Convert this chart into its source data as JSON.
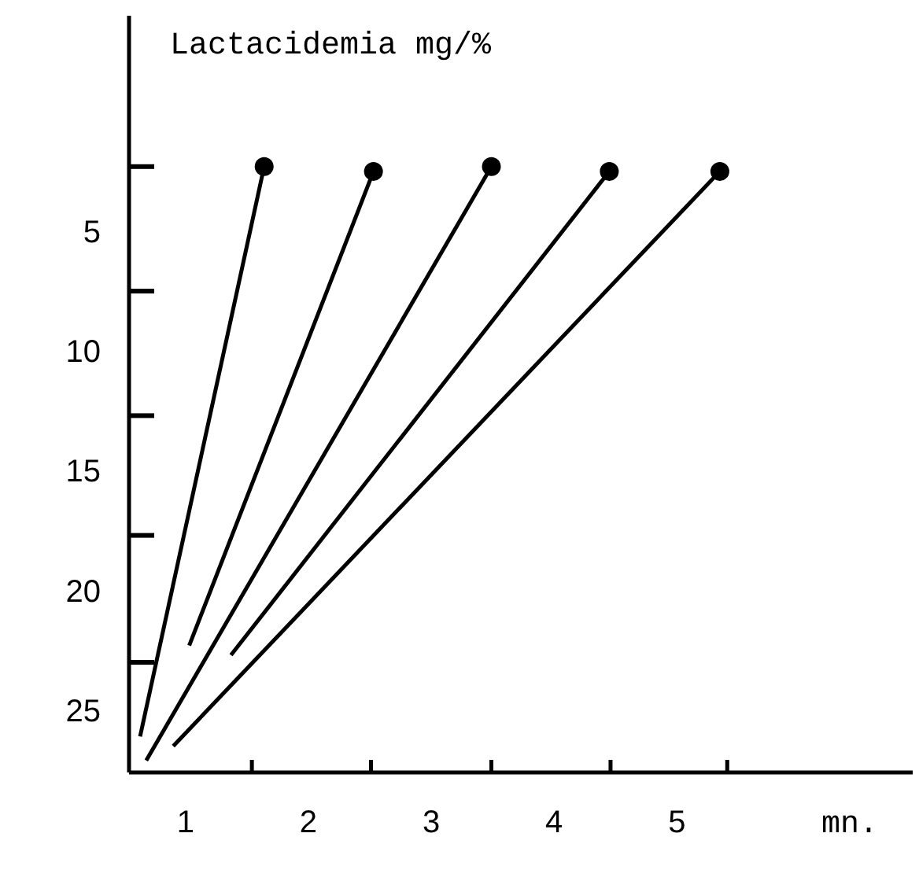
{
  "chart_data": {
    "type": "line",
    "title": "Lactacidemia mg/%",
    "xlabel": "mn.",
    "xlim": [
      0.54,
      6.92
    ],
    "ylim": [
      27.6,
      -4
    ],
    "xticks": [
      1,
      2,
      3,
      4,
      5,
      {
        "value": 1.54,
        "label": null
      },
      {
        "value": 2.51,
        "label": null
      },
      {
        "value": 3.49,
        "label": null
      },
      {
        "value": 4.46,
        "label": null
      },
      {
        "value": 5.41,
        "label": null
      }
    ],
    "yticks": [
      5,
      10,
      15,
      20,
      25,
      {
        "value": 2.3,
        "label": null
      },
      {
        "value": 7.5,
        "label": null
      },
      {
        "value": 12.7,
        "label": null
      },
      {
        "value": 17.7,
        "label": null
      },
      {
        "value": 23,
        "label": null
      }
    ],
    "marker": "none",
    "line_style": "solid",
    "series": [
      {
        "color": "#000000",
        "x": [
          0.63,
          1.64
        ],
        "values": [
          26.1,
          2.3
        ]
      },
      {
        "color": "#000000",
        "x": [
          1.03,
          2.53
        ],
        "values": [
          22.3,
          2.5
        ]
      },
      {
        "color": "#000000",
        "x": [
          0.68,
          3.49
        ],
        "values": [
          27.1,
          2.3
        ]
      },
      {
        "color": "#000000",
        "x": [
          1.37,
          4.45
        ],
        "values": [
          22.7,
          2.5
        ]
      },
      {
        "color": "#000000",
        "x": [
          0.9,
          5.35
        ],
        "values": [
          26.5,
          2.5
        ]
      },
      {
        "type": "scatter",
        "color": "#000000",
        "marker": "circle",
        "x": [
          1.64,
          2.53,
          3.49,
          4.45,
          5.35
        ],
        "values": [
          2.3,
          2.5,
          2.3,
          2.5,
          2.5
        ]
      }
    ]
  }
}
